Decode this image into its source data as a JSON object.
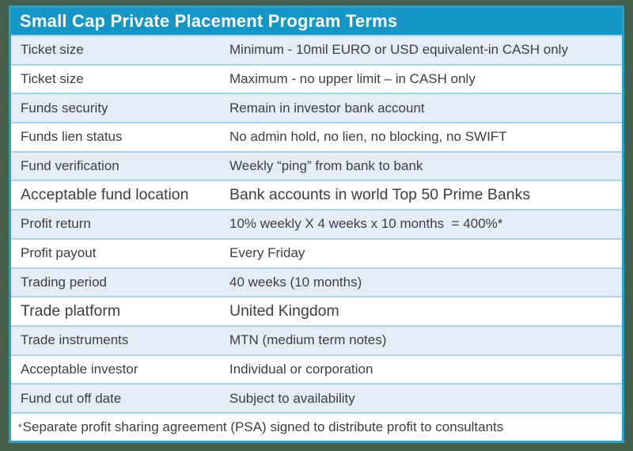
{
  "table": {
    "title": "Small Cap Private Placement Program Terms",
    "rows": [
      {
        "label": "Ticket size",
        "value": "Minimum - 10mil EURO or USD equivalent-in CASH only",
        "emphasis": false
      },
      {
        "label": "Ticket size",
        "value": "Maximum - no upper limit – in CASH only",
        "emphasis": false
      },
      {
        "label": "Funds security",
        "value": "Remain in investor bank account",
        "emphasis": false
      },
      {
        "label": "Funds lien status",
        "value": "No admin hold, no lien, no blocking, no SWIFT",
        "emphasis": false
      },
      {
        "label": "Fund verification",
        "value": "Weekly “ping” from bank to bank",
        "emphasis": false
      },
      {
        "label": "Acceptable fund location",
        "value": "Bank accounts in world Top 50 Prime Banks",
        "emphasis": true
      },
      {
        "label": "Profit return",
        "value": "10% weekly X 4 weeks x 10 months  = 400%*",
        "emphasis": false
      },
      {
        "label": "Profit payout",
        "value": "Every Friday",
        "emphasis": false
      },
      {
        "label": "Trading period",
        "value": "40 weeks (10 months)",
        "emphasis": false
      },
      {
        "label": "Trade platform",
        "value": "United Kingdom",
        "emphasis": true
      },
      {
        "label": "Trade instruments",
        "value": "MTN (medium term notes)",
        "emphasis": false
      },
      {
        "label": "Acceptable investor",
        "value": "Individual or corporation",
        "emphasis": false
      },
      {
        "label": "Fund cut off date",
        "value": "Subject to availability",
        "emphasis": false
      }
    ],
    "footnote_marker": "*",
    "footnote_text": "Separate profit sharing agreement (PSA) signed to distribute profit to consultants"
  },
  "colors": {
    "frame_green": "#44604A",
    "border_teal": "#2AA1CC",
    "header_blue": "#1496C6",
    "row_alt_blue": "#E4EDF6",
    "separator_blue": "#A9D4E8",
    "text_gray": "#3E3E3E",
    "header_text": "#FFFFFF"
  }
}
